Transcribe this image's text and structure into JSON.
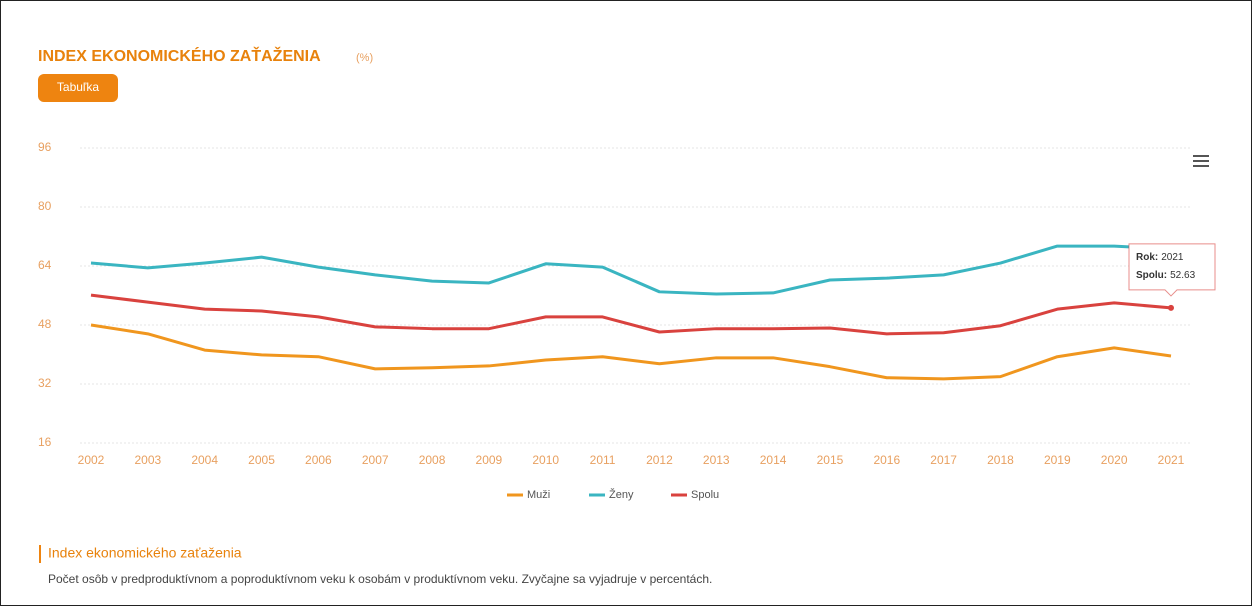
{
  "header": {
    "title": "INDEX EKONOMICKÉHO ZAŤAŽENIA",
    "unit": "(%)",
    "button": "Tabuľka"
  },
  "chart_data": {
    "type": "line",
    "categories": [
      "2002",
      "2003",
      "2004",
      "2005",
      "2006",
      "2007",
      "2008",
      "2009",
      "2010",
      "2011",
      "2012",
      "2013",
      "2014",
      "2015",
      "2016",
      "2017",
      "2018",
      "2019",
      "2020",
      "2021"
    ],
    "series": [
      {
        "name": "Muži",
        "color": "#f0961e",
        "values": [
          48,
          45.6,
          41.2,
          39.9,
          39.4,
          36.1,
          36.4,
          36.9,
          38.5,
          39.4,
          37.5,
          39.1,
          39.1,
          36.7,
          33.7,
          33.4,
          34,
          39.4,
          41.8,
          39.6
        ]
      },
      {
        "name": "Ženy",
        "color": "#3ab5c1",
        "values": [
          64.8,
          63.5,
          64.8,
          66.4,
          63.7,
          61.6,
          59.9,
          59.4,
          64.6,
          63.7,
          57,
          56.4,
          56.7,
          60.2,
          60.7,
          61.6,
          64.8,
          69.4,
          69.4,
          68.6
        ]
      },
      {
        "name": "Spolu",
        "color": "#d9423e",
        "values": [
          56.1,
          54.2,
          52.3,
          51.8,
          50.2,
          47.5,
          47,
          47,
          50.2,
          50.2,
          46.1,
          47,
          47,
          47.2,
          45.6,
          45.9,
          47.8,
          52.3,
          54,
          52.63
        ]
      }
    ],
    "ylim": [
      16,
      96
    ],
    "yticks": [
      16,
      32,
      48,
      64,
      80,
      96
    ],
    "grid": true,
    "legend": "bottom",
    "tooltip": {
      "year_label": "Rok:",
      "value_label": "Spolu:"
    }
  },
  "footer": {
    "heading": "Index ekonomického zaťaženia",
    "text": "Počet osôb v predproduktívnom a poproduktívnom veku k osobám v produktívnom veku. Zvyčajne sa vyjadruje v percentách."
  }
}
